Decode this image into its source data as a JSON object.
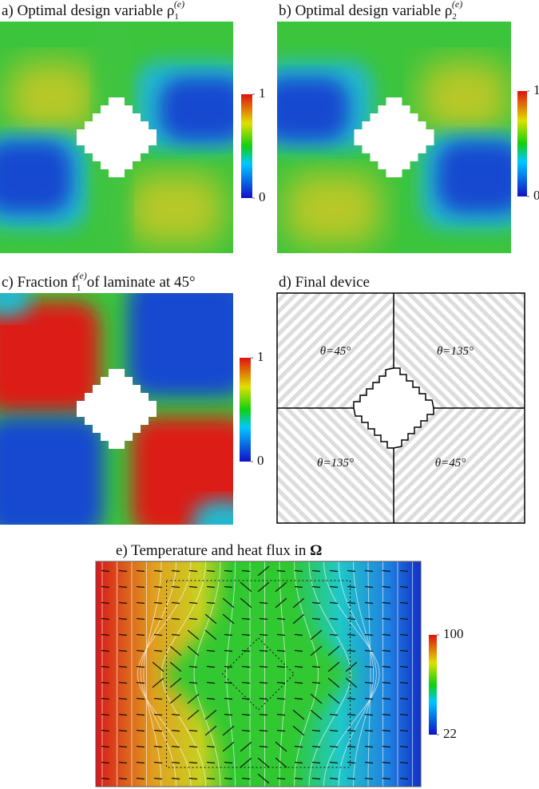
{
  "panels": [
    {
      "title": {
        "text": "a) Optimal design variable ρ",
        "sub": "1",
        "sup": "(e)"
      },
      "colorbar": {
        "lim": [
          0,
          1
        ],
        "ticks": [
          0,
          1
        ]
      }
    },
    {
      "title": {
        "text": "b) Optimal design variable ρ",
        "sub": "2",
        "sup": "(e)"
      },
      "colorbar": {
        "lim": [
          0,
          1
        ],
        "ticks": [
          0,
          1
        ]
      }
    },
    {
      "title": {
        "text": "c) Fraction f",
        "sub": "1",
        "sup": "(e)",
        "rest": "of laminate at 45°"
      },
      "colorbar": {
        "lim": [
          0,
          1
        ],
        "ticks": [
          0,
          1
        ]
      }
    },
    {
      "title": {
        "text": "d) Final device"
      },
      "labels": [
        "θ=45°",
        "θ=135°",
        "θ=135°",
        "θ=45°"
      ]
    },
    {
      "title": {
        "text": "e) Temperature and heat flux in",
        "bold": "Ω"
      },
      "colorbar": {
        "lim": [
          22,
          100
        ],
        "ticks": [
          22,
          100
        ]
      }
    }
  ]
}
